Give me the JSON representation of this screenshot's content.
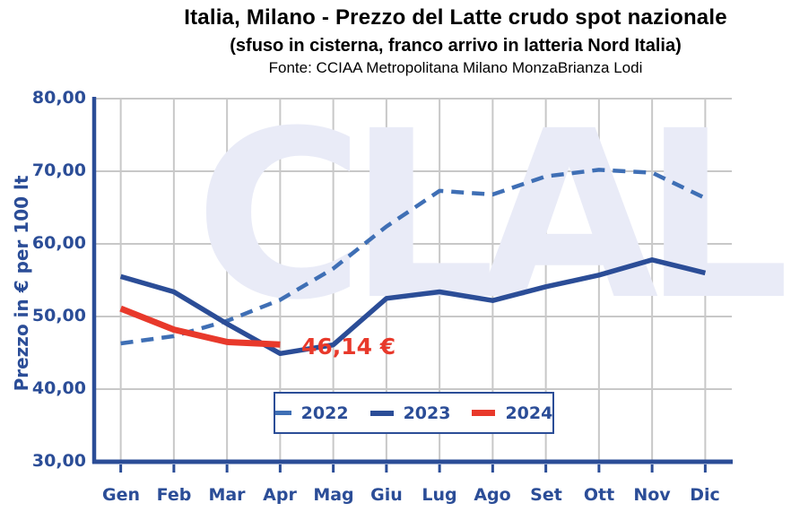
{
  "header": {
    "title": "Italia, Milano - Prezzo del Latte crudo spot nazionale",
    "subtitle": "(sfuso in cisterna, franco arrivo in latteria Nord Italia)",
    "source": "Fonte: CCIAA Metropolitana Milano MonzaBrianza Lodi"
  },
  "watermark": "CLAL",
  "colors": {
    "series_2022": "#3f6fb5",
    "series_2023": "#2b4d97",
    "series_2024": "#e8392b",
    "axis": "#2b4d97",
    "grid": "#c8c8c8",
    "watermark": "#e9ebf7",
    "annotation": "#e8392b",
    "title_text": "#000000"
  },
  "chart_data": {
    "type": "line",
    "x": [
      "Gen",
      "Feb",
      "Mar",
      "Apr",
      "Mag",
      "Giu",
      "Lug",
      "Ago",
      "Set",
      "Ott",
      "Nov",
      "Dic"
    ],
    "ylabel": "Prezzo in € per 100 lt",
    "xlabel": "",
    "ylim": [
      30,
      80
    ],
    "ytick_values": [
      80,
      70,
      60,
      50,
      40,
      30
    ],
    "ytick_labels": [
      "80,00",
      "70,00",
      "60,00",
      "50,00",
      "40,00",
      "30,00"
    ],
    "grid": true,
    "legend_position": "bottom-center-inside",
    "series": [
      {
        "name": "2022",
        "style": "dashed",
        "values": [
          46.3,
          47.3,
          49.4,
          52.3,
          56.6,
          62.4,
          67.3,
          66.8,
          69.3,
          70.2,
          69.8,
          66.3
        ]
      },
      {
        "name": "2023",
        "style": "solid",
        "values": [
          55.5,
          53.4,
          49.0,
          44.9,
          46.1,
          52.5,
          53.4,
          52.2,
          54.1,
          55.7,
          57.8,
          56.0
        ]
      },
      {
        "name": "2024",
        "style": "solid",
        "values": [
          51.1,
          48.2,
          46.5,
          46.14
        ]
      }
    ],
    "annotation": {
      "text": "46,14 €",
      "series": "2024",
      "month": "Apr",
      "value": 46.14
    }
  }
}
